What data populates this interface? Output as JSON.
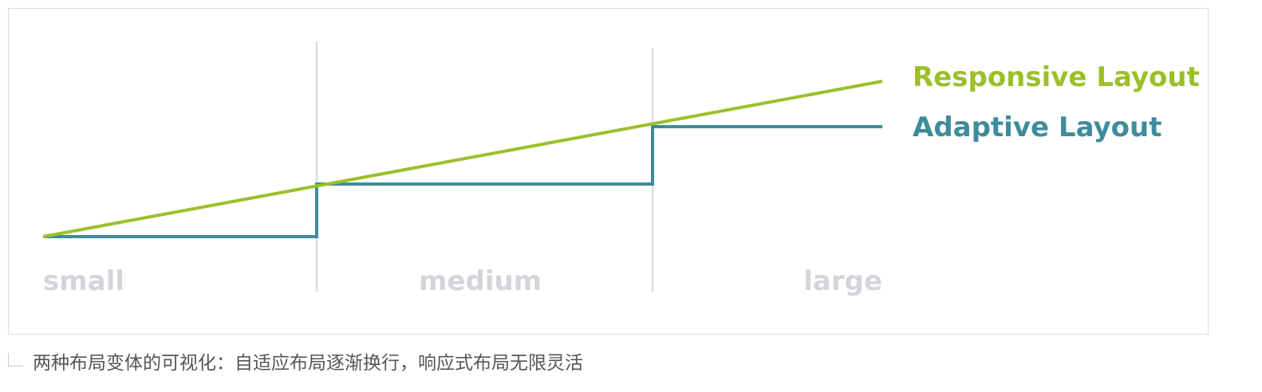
{
  "diagram": {
    "breakpoints": [
      "small",
      "medium",
      "large"
    ],
    "series": [
      {
        "name": "Responsive Layout",
        "color": "#9bbf2a",
        "shape": "continuous-line"
      },
      {
        "name": "Adaptive Layout",
        "color": "#3e8c9a",
        "shape": "step-line"
      }
    ],
    "divider_color": "#dcdde3",
    "label_color": "#d3d5da"
  },
  "caption": {
    "text": "两种布局变体的可视化：自适应布局逐渐换行，响应式布局无限灵活"
  }
}
